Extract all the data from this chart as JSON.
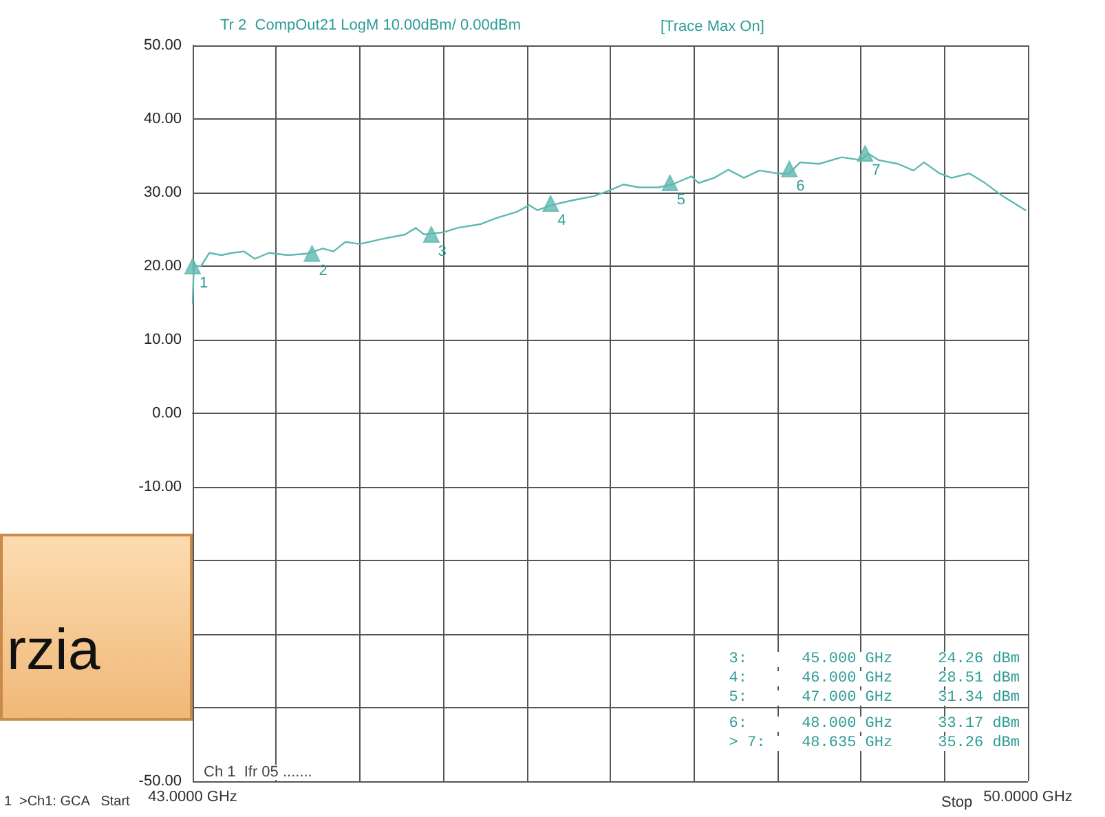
{
  "chart_data": {
    "type": "line",
    "title": "Tr 2  CompOut21 LogM 10.00dBm/ 0.00dBm",
    "x": [
      43.0,
      43.01,
      43.07,
      43.14,
      43.24,
      43.33,
      43.43,
      43.52,
      43.64,
      43.8,
      43.96,
      44.09,
      44.18,
      44.28,
      44.4,
      44.59,
      44.78,
      44.87,
      44.94,
      45.1,
      45.22,
      45.41,
      45.54,
      45.72,
      45.82,
      45.89,
      46.01,
      46.17,
      46.36,
      46.48,
      46.61,
      46.74,
      46.9,
      47.02,
      47.18,
      47.24,
      47.37,
      47.49,
      47.62,
      47.75,
      47.9,
      48.0,
      48.09,
      48.25,
      48.44,
      48.6,
      48.66,
      48.75,
      48.91,
      49.04,
      49.13,
      49.26,
      49.36,
      49.51,
      49.64,
      49.79,
      49.98
    ],
    "series": [
      {
        "color": "#5fb8b0",
        "marker": "none",
        "line_style": "solid",
        "values": [
          15,
          20,
          20,
          21.8,
          21.5,
          21.8,
          22,
          21,
          21.8,
          21.5,
          21.7,
          22.4,
          22,
          23.3,
          23,
          23.7,
          24.3,
          25.2,
          24.3,
          24.6,
          25.2,
          25.7,
          26.5,
          27.4,
          28.3,
          27.6,
          28.3,
          28.9,
          29.5,
          30.2,
          31.1,
          30.7,
          30.7,
          31.1,
          32.2,
          31.3,
          32,
          33.1,
          32,
          33,
          32.6,
          32.6,
          34.1,
          33.9,
          34.8,
          34.4,
          35.3,
          34.4,
          33.9,
          33,
          34.1,
          32.6,
          32,
          32.6,
          31.3,
          29.5,
          27.6
        ]
      },
      {
        "type": "scatter",
        "color": "#5fb8b0",
        "marker": "triangle",
        "x": [
          43,
          44,
          45,
          46,
          47,
          48,
          48.635
        ],
        "values": [
          20,
          21.7,
          24.3,
          28.5,
          31.3,
          33.2,
          35.3
        ]
      }
    ],
    "xlim": [
      43,
      50
    ],
    "xticks": [
      {
        "value": 43,
        "label": "43.0000 GHz"
      },
      {
        "value": 43.7,
        "label": null
      },
      {
        "value": 44.4,
        "label": null
      },
      {
        "value": 45.1,
        "label": null
      },
      {
        "value": 45.8,
        "label": null
      },
      {
        "value": 46.5,
        "label": null
      },
      {
        "value": 47.2,
        "label": null
      },
      {
        "value": 47.9,
        "label": null
      },
      {
        "value": 48.6,
        "label": null
      },
      {
        "value": 49.3,
        "label": null
      },
      {
        "value": 50,
        "label": "50.0000 GHz"
      }
    ],
    "ylim": [
      -50,
      50
    ],
    "yticks": [
      {
        "value": -50,
        "label": "-50.00"
      },
      {
        "value": -40,
        "label": null
      },
      {
        "value": -30,
        "label": null
      },
      {
        "value": -20,
        "label": null
      },
      {
        "value": -10,
        "label": "-10.00"
      },
      {
        "value": 0,
        "label": "0.00"
      },
      {
        "value": 10,
        "label": "10.00"
      },
      {
        "value": 20,
        "label": "20.00"
      },
      {
        "value": 30,
        "label": "30.00"
      },
      {
        "value": 40,
        "label": "40.00"
      },
      {
        "value": 50,
        "label": "50.00"
      }
    ],
    "grid": true,
    "annotations": [
      "[Trace Max On]",
      "3:      45.000 GHz     24.26 dBm",
      "4:      46.000 GHz     28.51 dBm",
      "5:      47.000 GHz     31.34 dBm",
      "6:      48.000 GHz     33.17 dBm",
      "> 7:    48.635 GHz     35.26 dBm",
      "Ch 1  Ifr 05 .......",
      ">Ch1: GCA   Start",
      "1",
      "Stop",
      "rzia",
      {
        "text": "1",
        "x": 43,
        "y": 20
      },
      {
        "text": "2",
        "x": 44,
        "y": 21.7
      },
      {
        "text": "3",
        "x": 45,
        "y": 24.3
      },
      {
        "text": "4",
        "x": 46,
        "y": 28.5
      },
      {
        "text": "5",
        "x": 47,
        "y": 31.3
      },
      {
        "text": "6",
        "x": 48,
        "y": 33.2
      },
      {
        "text": "7",
        "x": 48.635,
        "y": 35.3
      }
    ]
  }
}
